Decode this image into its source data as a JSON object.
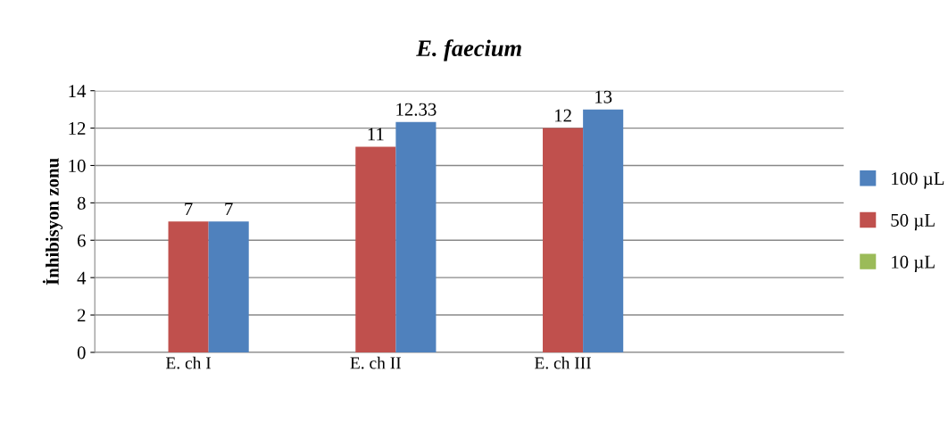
{
  "chart_data": {
    "type": "bar",
    "title": "E. faecium",
    "ylabel": "İnhibisyon zonu",
    "categories": [
      "E. ch I",
      "E. ch II",
      "E. ch III",
      null
    ],
    "series": [
      {
        "name": "10 µL",
        "color": "#9bbb59",
        "values": [
          null,
          null,
          null,
          null
        ]
      },
      {
        "name": "50 µL",
        "color": "#c0504d",
        "values": [
          7,
          11,
          12,
          null
        ]
      },
      {
        "name": "100 µL",
        "color": "#4f81bd",
        "values": [
          7,
          12.33,
          13,
          null
        ]
      }
    ],
    "ylim": [
      0,
      14
    ],
    "yticks": [
      0,
      2,
      4,
      6,
      8,
      10,
      12,
      14
    ],
    "grid": "y",
    "legend": "right",
    "data_labels": true
  }
}
